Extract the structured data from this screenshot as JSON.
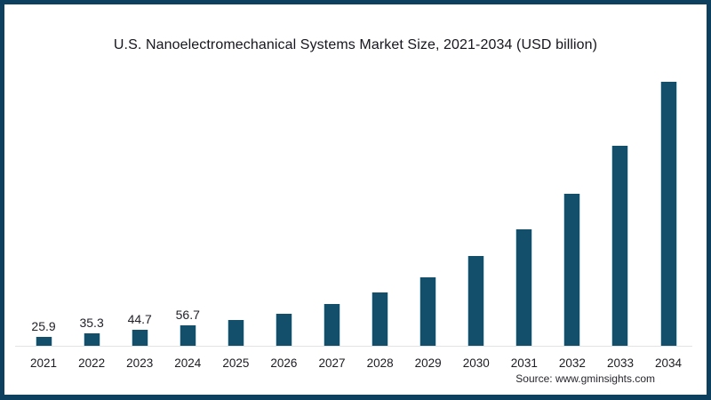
{
  "frame": {
    "background": "#ffffff",
    "border_color": "#0d405f"
  },
  "chart_data": {
    "type": "bar",
    "title": "U.S. Nanoelectromechanical Systems Market Size, 2021-2034 (USD billion)",
    "source": "Source: www.gminsights.com",
    "xlabel": "",
    "ylabel": "",
    "ylim": [
      0,
      720
    ],
    "grid": false,
    "legend": false,
    "categories": [
      "2021",
      "2022",
      "2023",
      "2024",
      "2025",
      "2026",
      "2027",
      "2028",
      "2029",
      "2030",
      "2031",
      "2032",
      "2033",
      "2034"
    ],
    "values": [
      25.9,
      35.3,
      44.7,
      56.7,
      72,
      90,
      115,
      146,
      187,
      244,
      316,
      413,
      542,
      715
    ],
    "data_labels": [
      "25.9",
      "35.3",
      "44.7",
      "56.7",
      "",
      "",
      "",
      "",
      "",
      "",
      "",
      "",
      "",
      ""
    ],
    "colors": {
      "bar": "#134e6a",
      "bar_edge_highlight": "#bed9e2",
      "axis_line": "#e3e3e3",
      "text": "#1f1f24"
    }
  }
}
